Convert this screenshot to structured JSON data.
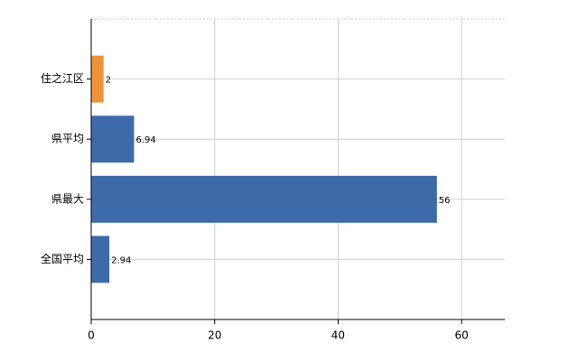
{
  "chart_data": {
    "type": "bar",
    "orientation": "horizontal",
    "categories": [
      "住之江区",
      "県平均",
      "県最大",
      "全国平均"
    ],
    "values": [
      2,
      6.94,
      56,
      2.94
    ],
    "colors": [
      "#f0923a",
      "#3d6baa",
      "#3d6baa",
      "#3d6baa"
    ],
    "xlim": [
      0,
      67
    ],
    "xticks": [
      0,
      20,
      40,
      60
    ],
    "grid": true
  }
}
